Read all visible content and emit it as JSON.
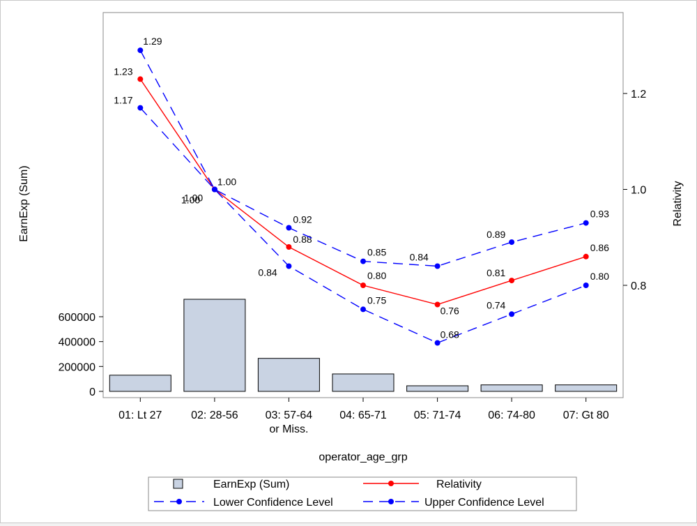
{
  "chart_data": {
    "type": "bar+line",
    "categories": [
      "01: Lt 27",
      "02: 28-56",
      "03: 57-64 or Miss.",
      "04: 65-71",
      "05: 71-74",
      "06: 74-80",
      "07: Gt 80"
    ],
    "category_label_lines": [
      [
        "01: Lt 27"
      ],
      [
        "02: 28-56"
      ],
      [
        "03: 57-64",
        "or Miss."
      ],
      [
        "04: 65-71"
      ],
      [
        "05: 71-74"
      ],
      [
        "06: 74-80"
      ],
      [
        "07: Gt 80"
      ]
    ],
    "bars": {
      "name": "EarnExp (Sum)",
      "values": [
        130000,
        740000,
        265000,
        140000,
        45000,
        52000,
        52000
      ],
      "color": "#c9d3e3"
    },
    "lines": [
      {
        "name": "Relativity",
        "values": [
          1.23,
          1.0,
          0.88,
          0.8,
          0.76,
          0.81,
          0.86
        ],
        "labels": [
          "1.23",
          "1.00",
          "0.88",
          "0.80",
          "0.76",
          "0.81",
          "0.86"
        ],
        "color": "#ff0000",
        "dashed": false
      },
      {
        "name": "Lower Confidence Level",
        "values": [
          1.17,
          1.0,
          0.84,
          0.75,
          0.68,
          0.74,
          0.8
        ],
        "labels": [
          "1.17",
          "1.00",
          "0.84",
          "0.75",
          "0.68",
          "0.74",
          "0.80"
        ],
        "color": "#0000ff",
        "dashed": true
      },
      {
        "name": "Upper Confidence Level",
        "values": [
          1.29,
          1.0,
          0.92,
          0.85,
          0.84,
          0.89,
          0.93
        ],
        "labels": [
          "1.29",
          "1.00",
          "0.92",
          "0.85",
          "0.84",
          "0.89",
          "0.93"
        ],
        "color": "#0000ff",
        "dashed": true
      }
    ],
    "xlabel": "operator_age_grp",
    "ylabel_left": "EarnExp (Sum)",
    "ylabel_right": "Relativity",
    "y_left_ticks": [
      "0",
      "200000",
      "400000",
      "600000"
    ],
    "y_left_tick_values": [
      0,
      200000,
      400000,
      600000
    ],
    "y_right_ticks": [
      "0.8",
      "1.0",
      "1.2"
    ],
    "y_right_tick_values": [
      0.8,
      1.0,
      1.2
    ],
    "y_right_range": [
      0.6,
      1.4
    ],
    "legend": {
      "placement": "bottom",
      "items": [
        "EarnExp (Sum)",
        "Relativity",
        "Lower Confidence Level",
        "Upper Confidence Level"
      ]
    }
  }
}
